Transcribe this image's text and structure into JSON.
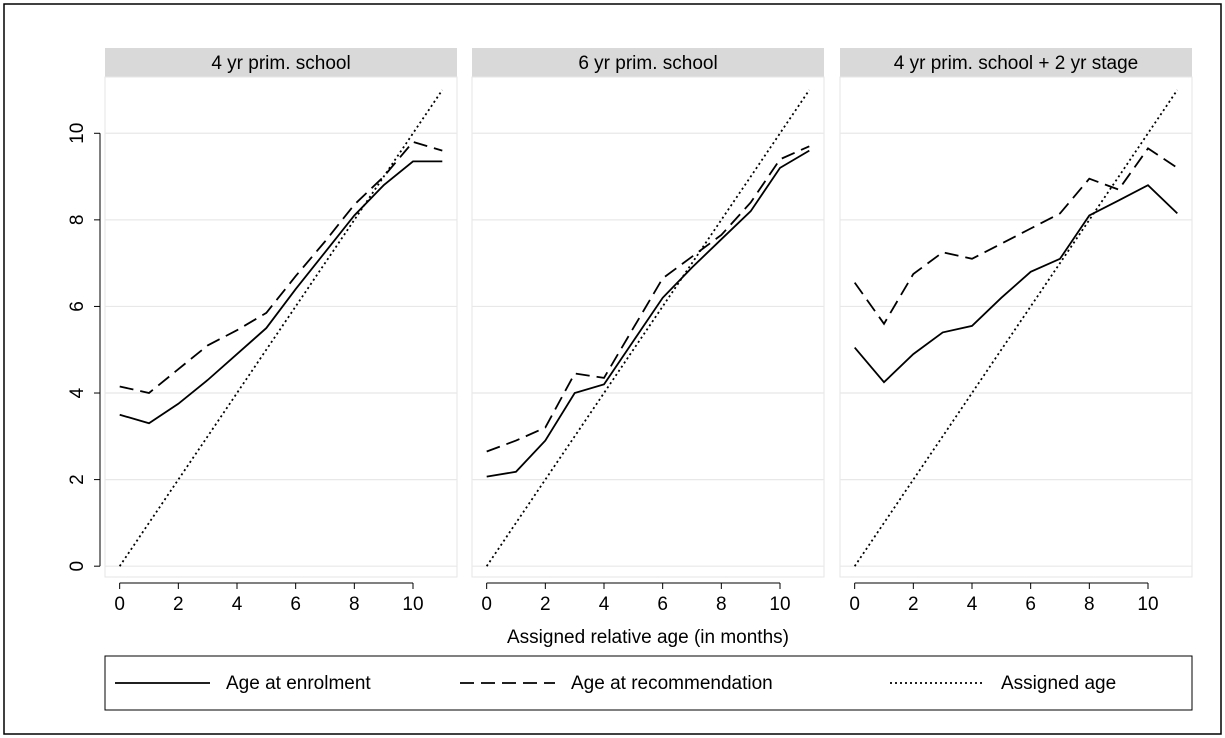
{
  "chart_data": {
    "type": "line",
    "x_label": "Assigned relative age (in months)",
    "x": [
      0,
      1,
      2,
      3,
      4,
      5,
      6,
      7,
      8,
      9,
      10,
      11
    ],
    "xlim": [
      -0.5,
      11.5
    ],
    "xticks": [
      0,
      2,
      4,
      6,
      8,
      10
    ],
    "ylim": [
      -0.25,
      11.3
    ],
    "yticks": [
      0,
      2,
      4,
      6,
      8,
      10
    ],
    "grid": true,
    "legend_position": "bottom",
    "legend": [
      {
        "name": "Age at enrolment",
        "color": "#000000",
        "dash": "solid"
      },
      {
        "name": "Age at recommendation",
        "color": "#000000",
        "dash": "dashed"
      },
      {
        "name": "Assigned age",
        "color": "#000000",
        "dash": "dotted"
      }
    ],
    "panels": [
      {
        "title": "4 yr prim. school",
        "series": [
          {
            "values": [
              3.5,
              3.3,
              3.75,
              4.3,
              4.9,
              5.5,
              6.4,
              7.25,
              8.1,
              8.8,
              9.35,
              9.35
            ]
          },
          {
            "values": [
              4.15,
              4.0,
              4.55,
              5.1,
              5.45,
              5.85,
              6.7,
              7.5,
              8.35,
              9.0,
              9.8,
              9.6
            ]
          },
          {
            "values": [
              0,
              1,
              2,
              3,
              4,
              5,
              6,
              7,
              8,
              9,
              10,
              11
            ]
          }
        ]
      },
      {
        "title": "6 yr prim. school",
        "series": [
          {
            "values": [
              2.07,
              2.18,
              2.9,
              4.0,
              4.2,
              5.2,
              6.2,
              6.9,
              7.55,
              8.2,
              9.2,
              9.6
            ]
          },
          {
            "values": [
              2.65,
              2.9,
              3.2,
              4.45,
              4.35,
              5.5,
              6.65,
              7.15,
              7.65,
              8.4,
              9.4,
              9.7
            ]
          },
          {
            "values": [
              0,
              1,
              2,
              3,
              4,
              5,
              6,
              7,
              8,
              9,
              10,
              11
            ]
          }
        ]
      },
      {
        "title": "4 yr prim. school + 2 yr stage",
        "series": [
          {
            "values": [
              5.05,
              4.25,
              4.9,
              5.4,
              5.55,
              6.2,
              6.8,
              7.1,
              8.1,
              8.45,
              8.8,
              8.15
            ]
          },
          {
            "values": [
              6.55,
              5.6,
              6.75,
              7.25,
              7.1,
              7.45,
              7.8,
              8.15,
              8.95,
              8.7,
              9.65,
              9.2
            ]
          },
          {
            "values": [
              0,
              1,
              2,
              3,
              4,
              5,
              6,
              7,
              8,
              9,
              10,
              11
            ]
          }
        ]
      }
    ]
  }
}
